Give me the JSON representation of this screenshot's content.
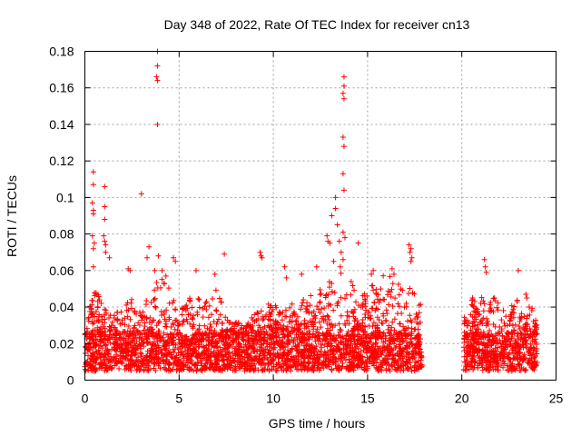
{
  "chart_data": {
    "type": "scatter",
    "title": "Day 348 of 2022, Rate Of TEC Index for receiver cn13",
    "xlabel": "GPS time / hours",
    "ylabel": "ROTI / TECUs",
    "xlim": [
      0,
      25
    ],
    "ylim": [
      0,
      0.18
    ],
    "xticks": [
      0,
      5,
      10,
      15,
      20,
      25
    ],
    "yticks": [
      0,
      0.02,
      0.04,
      0.06,
      0.08,
      0.1,
      0.12,
      0.14,
      0.16,
      0.18
    ],
    "grid": true,
    "marker": "plus",
    "color": "#ff0000",
    "data_gap_hours": [
      18.0,
      20.0
    ],
    "observed_ranges_hours": [
      [
        0.0,
        17.9
      ],
      [
        20.1,
        24.0
      ]
    ],
    "baseline_range": [
      0.005,
      0.025
    ],
    "envelope": [
      {
        "x": 0.0,
        "y": 0.025
      },
      {
        "x": 0.5,
        "y": 0.055
      },
      {
        "x": 1.0,
        "y": 0.04
      },
      {
        "x": 1.5,
        "y": 0.035
      },
      {
        "x": 2.5,
        "y": 0.045
      },
      {
        "x": 3.0,
        "y": 0.04
      },
      {
        "x": 3.5,
        "y": 0.048
      },
      {
        "x": 4.0,
        "y": 0.06
      },
      {
        "x": 4.5,
        "y": 0.05
      },
      {
        "x": 5.0,
        "y": 0.04
      },
      {
        "x": 5.5,
        "y": 0.045
      },
      {
        "x": 6.5,
        "y": 0.045
      },
      {
        "x": 7.0,
        "y": 0.05
      },
      {
        "x": 7.5,
        "y": 0.035
      },
      {
        "x": 8.5,
        "y": 0.03
      },
      {
        "x": 9.5,
        "y": 0.045
      },
      {
        "x": 10.5,
        "y": 0.04
      },
      {
        "x": 11.5,
        "y": 0.045
      },
      {
        "x": 12.5,
        "y": 0.05
      },
      {
        "x": 13.0,
        "y": 0.055
      },
      {
        "x": 13.7,
        "y": 0.065
      },
      {
        "x": 14.5,
        "y": 0.045
      },
      {
        "x": 15.0,
        "y": 0.05
      },
      {
        "x": 16.0,
        "y": 0.06
      },
      {
        "x": 17.0,
        "y": 0.05
      },
      {
        "x": 17.9,
        "y": 0.055
      },
      {
        "x": 20.1,
        "y": 0.035
      },
      {
        "x": 20.5,
        "y": 0.045
      },
      {
        "x": 21.0,
        "y": 0.045
      },
      {
        "x": 21.5,
        "y": 0.05
      },
      {
        "x": 22.0,
        "y": 0.045
      },
      {
        "x": 22.5,
        "y": 0.04
      },
      {
        "x": 23.0,
        "y": 0.045
      },
      {
        "x": 23.5,
        "y": 0.045
      },
      {
        "x": 24.0,
        "y": 0.035
      }
    ],
    "outliers": [
      {
        "x": 0.45,
        "y": 0.114
      },
      {
        "x": 0.45,
        "y": 0.107
      },
      {
        "x": 0.4,
        "y": 0.097
      },
      {
        "x": 0.45,
        "y": 0.093
      },
      {
        "x": 0.45,
        "y": 0.091
      },
      {
        "x": 0.4,
        "y": 0.079
      },
      {
        "x": 0.5,
        "y": 0.075
      },
      {
        "x": 0.45,
        "y": 0.072
      },
      {
        "x": 0.45,
        "y": 0.062
      },
      {
        "x": 1.05,
        "y": 0.106
      },
      {
        "x": 1.05,
        "y": 0.095
      },
      {
        "x": 1.05,
        "y": 0.088
      },
      {
        "x": 1.0,
        "y": 0.079
      },
      {
        "x": 1.05,
        "y": 0.076
      },
      {
        "x": 1.1,
        "y": 0.074
      },
      {
        "x": 1.1,
        "y": 0.07
      },
      {
        "x": 1.3,
        "y": 0.067
      },
      {
        "x": 2.3,
        "y": 0.061
      },
      {
        "x": 2.4,
        "y": 0.06
      },
      {
        "x": 3.0,
        "y": 0.102
      },
      {
        "x": 3.4,
        "y": 0.073
      },
      {
        "x": 3.3,
        "y": 0.067
      },
      {
        "x": 3.85,
        "y": 0.18
      },
      {
        "x": 3.85,
        "y": 0.172
      },
      {
        "x": 3.8,
        "y": 0.166
      },
      {
        "x": 3.85,
        "y": 0.164
      },
      {
        "x": 3.85,
        "y": 0.14
      },
      {
        "x": 3.9,
        "y": 0.068
      },
      {
        "x": 3.7,
        "y": 0.06
      },
      {
        "x": 4.1,
        "y": 0.06
      },
      {
        "x": 4.3,
        "y": 0.057
      },
      {
        "x": 4.7,
        "y": 0.067
      },
      {
        "x": 4.8,
        "y": 0.065
      },
      {
        "x": 5.9,
        "y": 0.06
      },
      {
        "x": 7.4,
        "y": 0.069
      },
      {
        "x": 6.9,
        "y": 0.058
      },
      {
        "x": 9.3,
        "y": 0.07
      },
      {
        "x": 9.35,
        "y": 0.068
      },
      {
        "x": 9.4,
        "y": 0.067
      },
      {
        "x": 10.6,
        "y": 0.062
      },
      {
        "x": 10.7,
        "y": 0.056
      },
      {
        "x": 11.5,
        "y": 0.058
      },
      {
        "x": 12.3,
        "y": 0.062
      },
      {
        "x": 12.85,
        "y": 0.079
      },
      {
        "x": 12.9,
        "y": 0.076
      },
      {
        "x": 13.0,
        "y": 0.075
      },
      {
        "x": 13.1,
        "y": 0.09
      },
      {
        "x": 13.3,
        "y": 0.1
      },
      {
        "x": 13.3,
        "y": 0.094
      },
      {
        "x": 13.4,
        "y": 0.085
      },
      {
        "x": 13.5,
        "y": 0.076
      },
      {
        "x": 13.6,
        "y": 0.07
      },
      {
        "x": 13.2,
        "y": 0.065
      },
      {
        "x": 13.7,
        "y": 0.066
      },
      {
        "x": 13.55,
        "y": 0.062
      },
      {
        "x": 13.75,
        "y": 0.166
      },
      {
        "x": 13.75,
        "y": 0.161
      },
      {
        "x": 13.7,
        "y": 0.157
      },
      {
        "x": 13.75,
        "y": 0.154
      },
      {
        "x": 13.7,
        "y": 0.133
      },
      {
        "x": 13.75,
        "y": 0.128
      },
      {
        "x": 13.7,
        "y": 0.113
      },
      {
        "x": 13.75,
        "y": 0.104
      },
      {
        "x": 13.7,
        "y": 0.081
      },
      {
        "x": 13.8,
        "y": 0.078
      },
      {
        "x": 14.5,
        "y": 0.075
      },
      {
        "x": 15.2,
        "y": 0.058
      },
      {
        "x": 15.3,
        "y": 0.06
      },
      {
        "x": 16.3,
        "y": 0.061
      },
      {
        "x": 16.4,
        "y": 0.058
      },
      {
        "x": 17.2,
        "y": 0.074
      },
      {
        "x": 17.3,
        "y": 0.072
      },
      {
        "x": 17.25,
        "y": 0.07
      },
      {
        "x": 17.35,
        "y": 0.067
      },
      {
        "x": 17.3,
        "y": 0.065
      },
      {
        "x": 21.2,
        "y": 0.066
      },
      {
        "x": 21.25,
        "y": 0.062
      },
      {
        "x": 21.3,
        "y": 0.059
      },
      {
        "x": 23.0,
        "y": 0.06
      },
      {
        "x": 23.4,
        "y": 0.047
      },
      {
        "x": 23.45,
        "y": 0.045
      }
    ],
    "generated_seed": 348
  }
}
